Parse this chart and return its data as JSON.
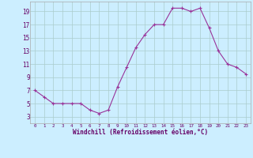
{
  "x": [
    0,
    1,
    2,
    3,
    4,
    5,
    6,
    7,
    8,
    9,
    10,
    11,
    12,
    13,
    14,
    15,
    16,
    17,
    18,
    19,
    20,
    21,
    22,
    23
  ],
  "y": [
    7,
    6,
    5,
    5,
    5,
    5,
    4,
    3.5,
    4,
    7.5,
    10.5,
    13.5,
    15.5,
    17,
    17,
    19.5,
    19.5,
    19,
    19.5,
    16.5,
    13,
    11,
    10.5,
    9.5
  ],
  "line_color": "#993399",
  "marker_color": "#993399",
  "bg_color": "#cceeff",
  "grid_color": "#aacccc",
  "xlabel": "Windchill (Refroidissement éolien,°C)",
  "yticks": [
    3,
    5,
    7,
    9,
    11,
    13,
    15,
    17,
    19
  ],
  "xticks": [
    0,
    1,
    2,
    3,
    4,
    5,
    6,
    7,
    8,
    9,
    10,
    11,
    12,
    13,
    14,
    15,
    16,
    17,
    18,
    19,
    20,
    21,
    22,
    23
  ],
  "ylim": [
    2.0,
    20.5
  ],
  "xlim": [
    -0.5,
    23.5
  ]
}
